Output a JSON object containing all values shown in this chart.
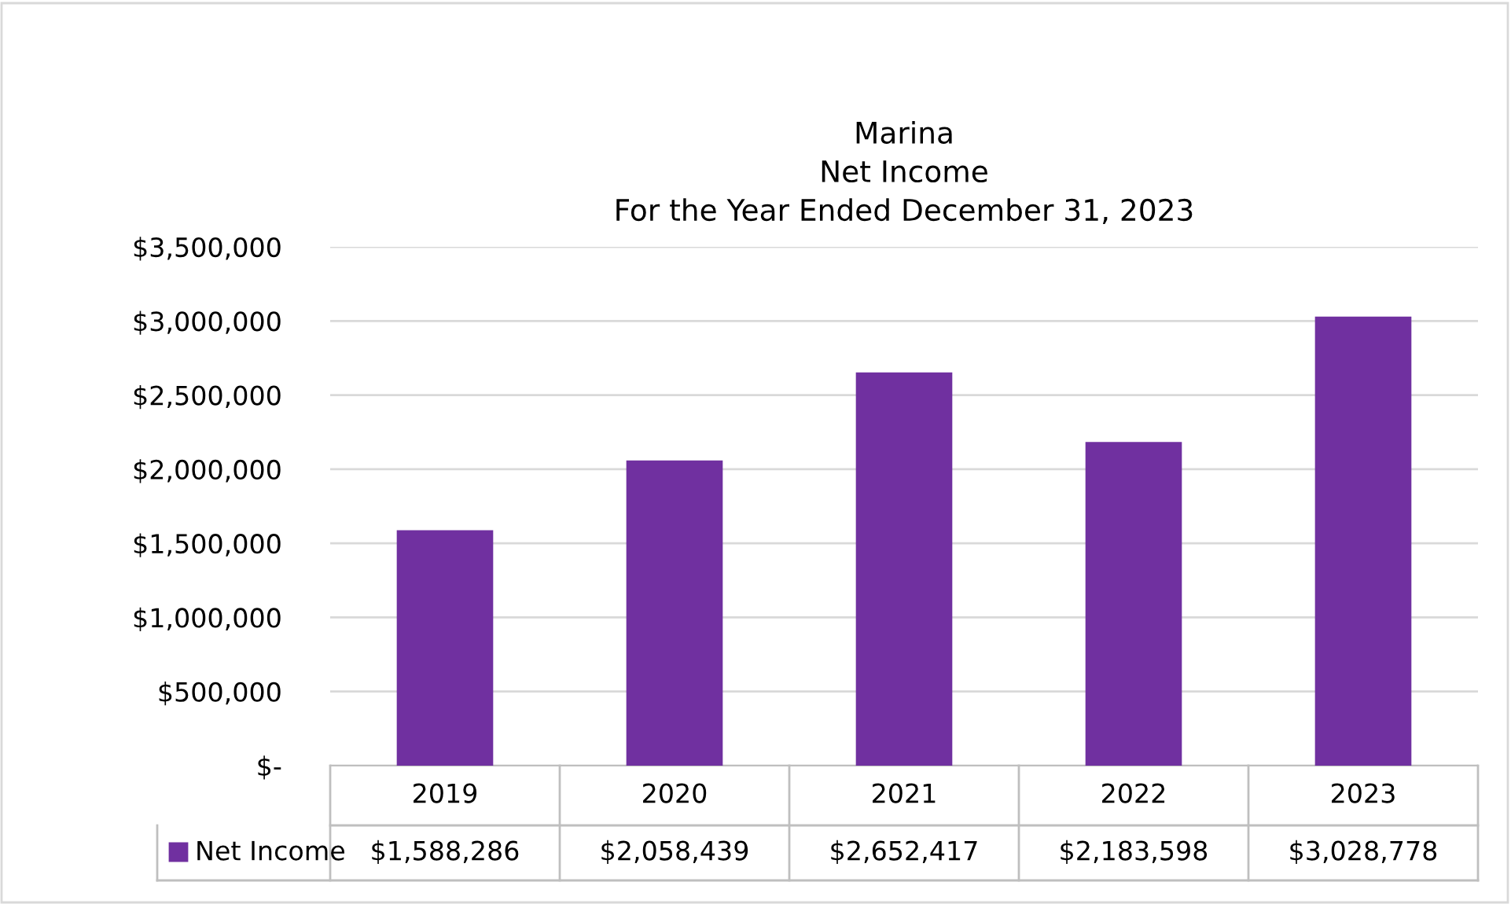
{
  "chart_data": {
    "type": "bar",
    "title": "Marina\nNet Income\nFor the Year Ended December 31, 2023",
    "categories": [
      "2019",
      "2020",
      "2021",
      "2022",
      "2023"
    ],
    "series": [
      {
        "name": "Net Income",
        "color": "#7030a0",
        "values": [
          1588286,
          2058439,
          2652417,
          2183598,
          3028778
        ],
        "value_labels": [
          "$1,588,286",
          "$2,058,439",
          "$2,652,417",
          "$2,183,598",
          "$3,028,778"
        ]
      }
    ],
    "ylim": [
      0,
      3500000
    ],
    "yticks": [
      {
        "value": 0,
        "label": "$-"
      },
      {
        "value": 500000,
        "label": "$500,000"
      },
      {
        "value": 1000000,
        "label": "$1,000,000"
      },
      {
        "value": 1500000,
        "label": "$1,500,000"
      },
      {
        "value": 2000000,
        "label": "$2,000,000"
      },
      {
        "value": 2500000,
        "label": "$2,500,000"
      },
      {
        "value": 3000000,
        "label": "$3,000,000"
      },
      {
        "value": 3500000,
        "label": "$3,500,000"
      }
    ],
    "grid": "y",
    "legend": "bottom",
    "data_labels": true
  }
}
